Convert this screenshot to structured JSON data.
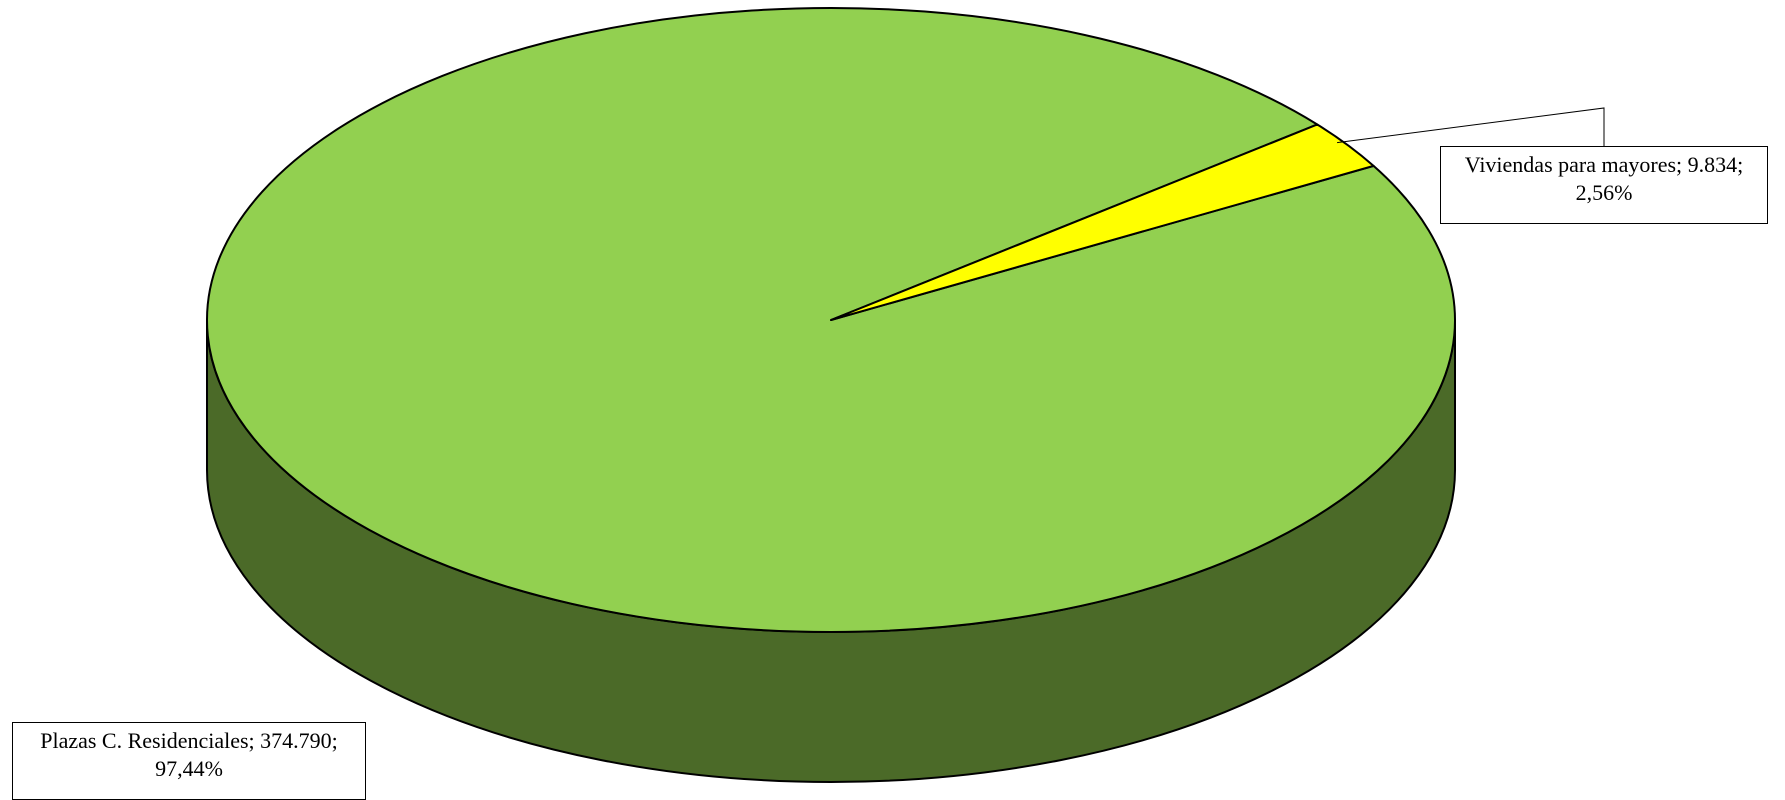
{
  "chart_data": {
    "type": "pie",
    "style": "3d",
    "title": "",
    "slices": [
      {
        "label": "Plazas C. Residenciales",
        "value": 374790,
        "percent": 97.44,
        "label_line1": "Plazas C. Residenciales; 374.790;",
        "label_line2": "97,44%",
        "color_top": "#92d050",
        "color_side": "#4b6a28"
      },
      {
        "label": "Viviendas para mayores",
        "value": 9834,
        "percent": 2.56,
        "label_line1": "Viviendas para mayores; 9.834;",
        "label_line2": "2,56%",
        "color_top": "#ffff00",
        "color_side": "#b3b300"
      }
    ],
    "legend": "none"
  }
}
